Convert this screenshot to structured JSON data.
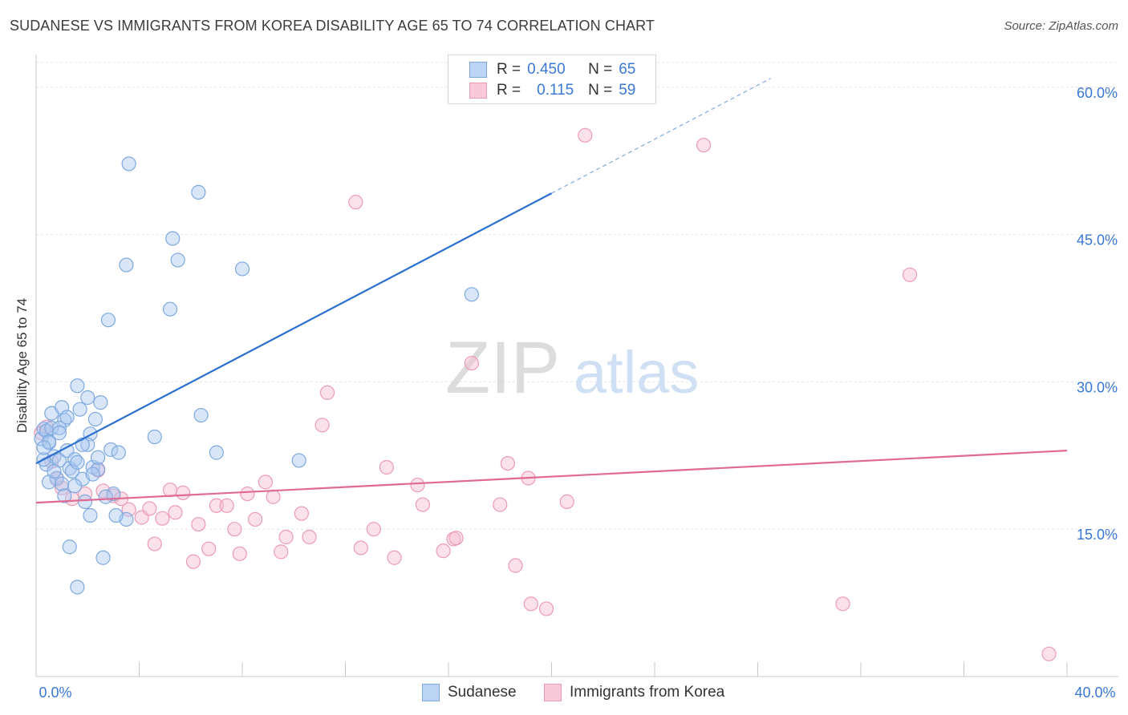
{
  "header": {
    "title": "SUDANESE VS IMMIGRANTS FROM KOREA DISABILITY AGE 65 TO 74 CORRELATION CHART",
    "source": "Source: ZipAtlas.com"
  },
  "watermark": {
    "part1": "ZIP",
    "part2": "atlas"
  },
  "legend": {
    "rows": [
      {
        "r_label": "R =",
        "r_value": "0.450",
        "n_label": "N =",
        "n_value": "65"
      },
      {
        "r_label": "R =",
        "r_value": "0.115",
        "n_label": "N =",
        "n_value": "59"
      }
    ]
  },
  "bottom_legend": {
    "items": [
      {
        "label": "Sudanese"
      },
      {
        "label": "Immigrants from Korea"
      }
    ]
  },
  "colors": {
    "blue_fill": "#a9c8f0",
    "blue_stroke": "#7ea9e0",
    "blue_line": "#2b6fcf",
    "pink_fill": "#f6bccf",
    "pink_stroke": "#ec9bb6",
    "pink_line": "#e06a93",
    "axis_text": "#3a78d6",
    "grid": "#e6e6e6"
  },
  "chart_data": {
    "type": "scatter",
    "title": "SUDANESE VS IMMIGRANTS FROM KOREA DISABILITY AGE 65 TO 74 CORRELATION CHART",
    "xlabel": "",
    "ylabel": "Disability Age 65 to 74",
    "xlim": [
      0,
      40
    ],
    "ylim": [
      0,
      63
    ],
    "x_tick_labels": [
      "0.0%",
      "40.0%"
    ],
    "y_ticks": [
      15,
      30,
      45,
      60
    ],
    "y_tick_labels": [
      "15.0%",
      "30.0%",
      "45.0%",
      "60.0%"
    ],
    "grid": true,
    "series": [
      {
        "name": "Sudanese",
        "color": "blue",
        "trend": {
          "x0": 0,
          "y0": 21.7,
          "x1": 20,
          "y1": 49.2,
          "dash_to_x": 28.5
        },
        "points": [
          [
            0.2,
            24.2
          ],
          [
            0.3,
            25.2
          ],
          [
            0.4,
            25.0
          ],
          [
            0.5,
            23.8
          ],
          [
            0.6,
            25.3
          ],
          [
            0.4,
            21.6
          ],
          [
            0.7,
            22.4
          ],
          [
            0.8,
            20.2
          ],
          [
            0.9,
            22.0
          ],
          [
            1.0,
            19.6
          ],
          [
            0.5,
            19.8
          ],
          [
            1.1,
            26.1
          ],
          [
            1.2,
            23.0
          ],
          [
            1.3,
            21.2
          ],
          [
            1.4,
            20.9
          ],
          [
            1.5,
            22.1
          ],
          [
            1.6,
            21.8
          ],
          [
            0.6,
            26.8
          ],
          [
            1.0,
            27.4
          ],
          [
            1.7,
            27.2
          ],
          [
            2.0,
            28.4
          ],
          [
            1.6,
            29.6
          ],
          [
            2.1,
            24.7
          ],
          [
            2.3,
            26.2
          ],
          [
            2.5,
            27.9
          ],
          [
            2.2,
            21.3
          ],
          [
            2.0,
            23.6
          ],
          [
            2.9,
            23.1
          ],
          [
            3.2,
            22.8
          ],
          [
            3.0,
            18.6
          ],
          [
            3.5,
            16.0
          ],
          [
            2.7,
            18.3
          ],
          [
            3.1,
            16.4
          ],
          [
            2.1,
            16.4
          ],
          [
            1.9,
            17.8
          ],
          [
            1.1,
            18.4
          ],
          [
            1.3,
            13.2
          ],
          [
            2.6,
            12.1
          ],
          [
            1.6,
            9.1
          ],
          [
            3.6,
            52.2
          ],
          [
            6.3,
            49.3
          ],
          [
            5.3,
            44.6
          ],
          [
            5.5,
            42.4
          ],
          [
            3.5,
            41.9
          ],
          [
            8.0,
            41.5
          ],
          [
            5.2,
            37.4
          ],
          [
            2.8,
            36.3
          ],
          [
            16.9,
            38.9
          ],
          [
            6.4,
            26.6
          ],
          [
            4.6,
            24.4
          ],
          [
            7.0,
            22.8
          ],
          [
            10.2,
            22.0
          ],
          [
            0.3,
            22.1
          ],
          [
            0.9,
            25.3
          ],
          [
            1.8,
            20.1
          ],
          [
            2.4,
            21.1
          ],
          [
            0.5,
            23.9
          ],
          [
            1.5,
            19.4
          ],
          [
            2.2,
            20.6
          ],
          [
            1.2,
            26.4
          ],
          [
            0.7,
            20.9
          ],
          [
            0.9,
            24.8
          ],
          [
            0.3,
            23.3
          ],
          [
            1.8,
            23.6
          ],
          [
            2.4,
            22.3
          ]
        ]
      },
      {
        "name": "Immigrants from Korea",
        "color": "pink",
        "trend": {
          "x0": 0,
          "y0": 17.7,
          "x1": 40,
          "y1": 23.0
        },
        "points": [
          [
            0.2,
            24.8
          ],
          [
            0.4,
            25.4
          ],
          [
            0.6,
            21.9
          ],
          [
            0.8,
            20.1
          ],
          [
            1.0,
            19.2
          ],
          [
            1.4,
            18.1
          ],
          [
            1.9,
            18.6
          ],
          [
            2.4,
            21.0
          ],
          [
            2.6,
            18.9
          ],
          [
            3.0,
            18.4
          ],
          [
            3.3,
            18.1
          ],
          [
            3.6,
            17.0
          ],
          [
            4.1,
            16.2
          ],
          [
            4.4,
            17.1
          ],
          [
            4.6,
            13.5
          ],
          [
            4.9,
            16.1
          ],
          [
            5.2,
            19.0
          ],
          [
            5.4,
            16.7
          ],
          [
            5.7,
            18.7
          ],
          [
            6.1,
            11.7
          ],
          [
            6.3,
            15.5
          ],
          [
            6.7,
            13.0
          ],
          [
            7.0,
            17.4
          ],
          [
            7.4,
            17.4
          ],
          [
            7.7,
            15.0
          ],
          [
            7.9,
            12.5
          ],
          [
            8.2,
            18.6
          ],
          [
            8.5,
            16.0
          ],
          [
            8.9,
            19.8
          ],
          [
            9.2,
            18.3
          ],
          [
            9.5,
            12.7
          ],
          [
            9.7,
            14.2
          ],
          [
            10.3,
            16.6
          ],
          [
            10.6,
            14.2
          ],
          [
            11.1,
            25.6
          ],
          [
            11.3,
            28.9
          ],
          [
            12.4,
            48.3
          ],
          [
            12.6,
            13.1
          ],
          [
            13.1,
            15.0
          ],
          [
            13.6,
            21.3
          ],
          [
            13.9,
            12.1
          ],
          [
            14.8,
            19.5
          ],
          [
            15.0,
            17.5
          ],
          [
            15.8,
            12.8
          ],
          [
            16.2,
            14.0
          ],
          [
            16.3,
            14.1
          ],
          [
            16.9,
            31.9
          ],
          [
            18.0,
            17.5
          ],
          [
            18.3,
            21.7
          ],
          [
            18.6,
            11.3
          ],
          [
            19.1,
            20.2
          ],
          [
            19.2,
            7.4
          ],
          [
            19.8,
            6.9
          ],
          [
            20.6,
            17.8
          ],
          [
            21.3,
            55.1
          ],
          [
            25.9,
            54.1
          ],
          [
            31.3,
            7.4
          ],
          [
            33.9,
            40.9
          ],
          [
            39.3,
            2.3
          ]
        ]
      }
    ]
  }
}
